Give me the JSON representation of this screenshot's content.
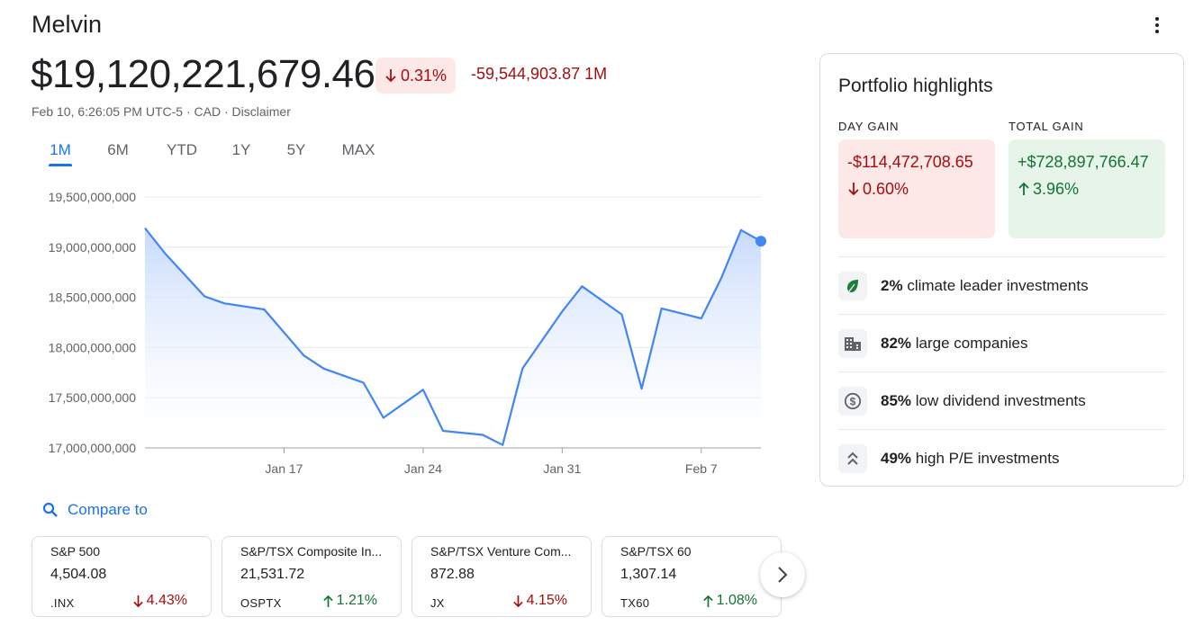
{
  "header": {
    "title": "Melvin",
    "price": "$19,120,221,679.46",
    "percent_change": "0.31%",
    "change_text": "-59,544,903.87 1M",
    "meta": "Feb 10, 6:26:05 PM UTC-5 · CAD · Disclaimer"
  },
  "tabs": [
    {
      "label": "1M",
      "active": true
    },
    {
      "label": "6M",
      "active": false
    },
    {
      "label": "YTD",
      "active": false
    },
    {
      "label": "1Y",
      "active": false
    },
    {
      "label": "5Y",
      "active": false
    },
    {
      "label": "MAX",
      "active": false
    }
  ],
  "chart_data": {
    "type": "area",
    "x_tick_labels": [
      "Jan 17",
      "Jan 24",
      "Jan 31",
      "Feb 7"
    ],
    "y_tick_labels": [
      "19,500,000,000",
      "19,000,000,000",
      "18,500,000,000",
      "18,000,000,000",
      "17,500,000,000",
      "17,000,000,000"
    ],
    "ylim": [
      17000000000,
      19500000000
    ],
    "x": [
      "Jan 10",
      "Jan 11",
      "Jan 13",
      "Jan 14",
      "Jan 16",
      "Jan 18",
      "Jan 19",
      "Jan 21",
      "Jan 22",
      "Jan 24",
      "Jan 25",
      "Jan 27",
      "Jan 28",
      "Jan 29",
      "Jan 31",
      "Feb 1",
      "Feb 3",
      "Feb 4",
      "Feb 5",
      "Feb 7",
      "Feb 8",
      "Feb 9",
      "Feb 10"
    ],
    "values": [
      19190000000,
      18940000000,
      18510000000,
      18440000000,
      18380000000,
      17920000000,
      17790000000,
      17650000000,
      17300000000,
      17580000000,
      17170000000,
      17130000000,
      17030000000,
      17790000000,
      18360000000,
      18610000000,
      18330000000,
      17590000000,
      18390000000,
      18290000000,
      18690000000,
      19170000000,
      19060000000
    ],
    "line_color": "#4285f4",
    "fill_color": "#c6dafc",
    "grid": true
  },
  "compare": {
    "label": "Compare to",
    "icon": "search-icon",
    "items": [
      {
        "name": "S&P 500",
        "value": "4,504.08",
        "ticker": ".INX",
        "change": "4.43%",
        "direction": "down"
      },
      {
        "name": "S&P/TSX Composite In...",
        "value": "21,531.72",
        "ticker": "OSPTX",
        "change": "1.21%",
        "direction": "up"
      },
      {
        "name": "S&P/TSX Venture Com...",
        "value": "872.88",
        "ticker": "JX",
        "change": "4.15%",
        "direction": "down"
      },
      {
        "name": "S&P/TSX 60",
        "value": "1,307.14",
        "ticker": "TX60",
        "change": "1.08%",
        "direction": "up"
      }
    ]
  },
  "highlights": {
    "title": "Portfolio highlights",
    "day_gain": {
      "label": "DAY GAIN",
      "value": "-$114,472,708.65",
      "percent": "0.60%",
      "direction": "down"
    },
    "total_gain": {
      "label": "TOTAL GAIN",
      "value": "+$728,897,766.47",
      "percent": "3.96%",
      "direction": "up"
    },
    "items": [
      {
        "percent": "2%",
        "text": "climate leader investments",
        "icon": "leaf-icon"
      },
      {
        "percent": "82%",
        "text": "large companies",
        "icon": "building-icon"
      },
      {
        "percent": "85%",
        "text": "low dividend investments",
        "icon": "dollar-coin-icon"
      },
      {
        "percent": "49%",
        "text": "high P/E investments",
        "icon": "double-chevron-up-icon"
      }
    ]
  },
  "colors": {
    "accent": "#1a73e8",
    "negative": "#a50e0e",
    "negative_bg": "#fce8e6",
    "positive": "#137333",
    "positive_bg": "#e6f4ea"
  }
}
